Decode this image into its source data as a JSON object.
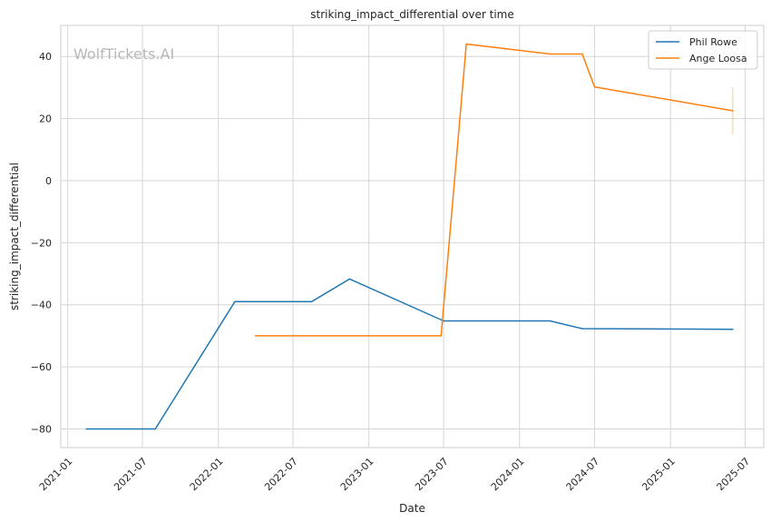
{
  "chart_data": {
    "type": "line",
    "title": "striking_impact_differential over time",
    "xlabel": "Date",
    "ylabel": "striking_impact_differential",
    "watermark": "WolfTickets.AI",
    "x_ticks": [
      "2021-01",
      "2021-07",
      "2022-01",
      "2022-07",
      "2023-01",
      "2023-07",
      "2024-01",
      "2024-07",
      "2025-01",
      "2025-07"
    ],
    "y_ticks": [
      -80,
      -60,
      -40,
      -20,
      0,
      20,
      40
    ],
    "ylim": [
      -86,
      50
    ],
    "xlim": [
      "2020-12-15",
      "2025-08-15"
    ],
    "grid": true,
    "legend_position": "top-right",
    "series": [
      {
        "name": "Phil Rowe",
        "color": "#1f77b4",
        "points": [
          [
            "2021-02-15",
            -80
          ],
          [
            "2021-08-01",
            -80
          ],
          [
            "2022-02-10",
            -39
          ],
          [
            "2022-08-15",
            -39
          ],
          [
            "2022-11-15",
            -31.7
          ],
          [
            "2023-07-01",
            -45.2
          ],
          [
            "2024-03-15",
            -45.2
          ],
          [
            "2024-06-01",
            -47.7
          ],
          [
            "2025-06-01",
            -47.9
          ]
        ]
      },
      {
        "name": "Ange Loosa",
        "color": "#ff7f0e",
        "points": [
          [
            "2022-04-01",
            -50
          ],
          [
            "2023-06-25",
            -50
          ],
          [
            "2023-08-25",
            44
          ],
          [
            "2024-03-15",
            40.8
          ],
          [
            "2024-06-01",
            40.8
          ],
          [
            "2024-07-01",
            30.2
          ],
          [
            "2025-06-01",
            22.5
          ]
        ],
        "error_bar": {
          "x": "2025-06-01",
          "low": 15,
          "high": 30
        }
      }
    ]
  }
}
